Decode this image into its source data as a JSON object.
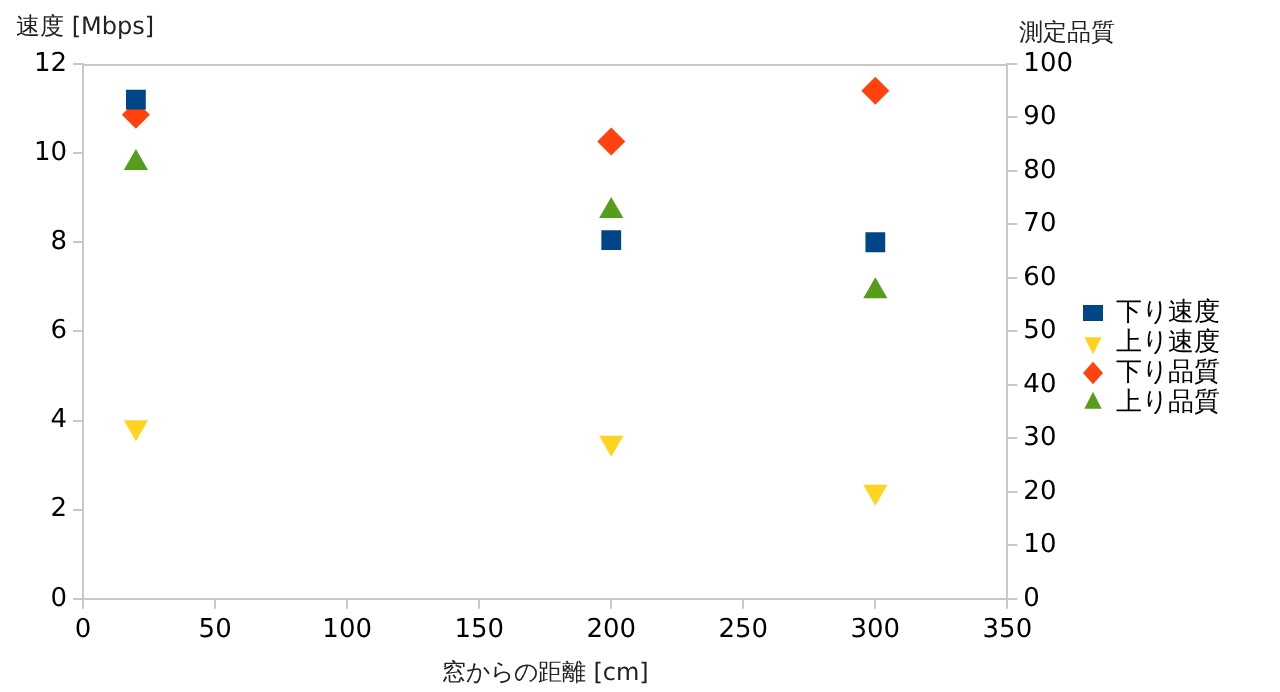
{
  "chart_data": {
    "type": "scatter",
    "xlabel": "窓からの距離 [cm]",
    "ylabel": "速度 [Mbps]",
    "y2label": "測定品質",
    "x": [
      20,
      200,
      300
    ],
    "xlim": [
      0,
      350
    ],
    "xticks": [
      0,
      50,
      100,
      150,
      200,
      250,
      300,
      350
    ],
    "ylim": [
      0,
      12
    ],
    "yticks": [
      0,
      2,
      4,
      6,
      8,
      10,
      12
    ],
    "y2lim": [
      0,
      100
    ],
    "y2ticks": [
      0,
      10,
      20,
      30,
      40,
      50,
      60,
      70,
      80,
      90,
      100
    ],
    "grid": false,
    "legend": "right",
    "series": [
      {
        "name": "下り速度",
        "color": "#004586",
        "marker": "square",
        "values": [
          11.2,
          8.05,
          8.0
        ]
      },
      {
        "name": "上り速度",
        "color": "#ffd320",
        "marker": "triangle-down",
        "values": [
          3.85,
          3.5,
          2.4
        ]
      },
      {
        "name": "下り品質",
        "color": "#ff420e",
        "marker": "diamond",
        "axis": "y2",
        "values": [
          90.5,
          85.5,
          95
        ]
      },
      {
        "name": "上り品質",
        "color": "#579d1c",
        "marker": "triangle",
        "axis": "y2",
        "values": [
          81.5,
          72.5,
          57.5
        ]
      }
    ]
  }
}
